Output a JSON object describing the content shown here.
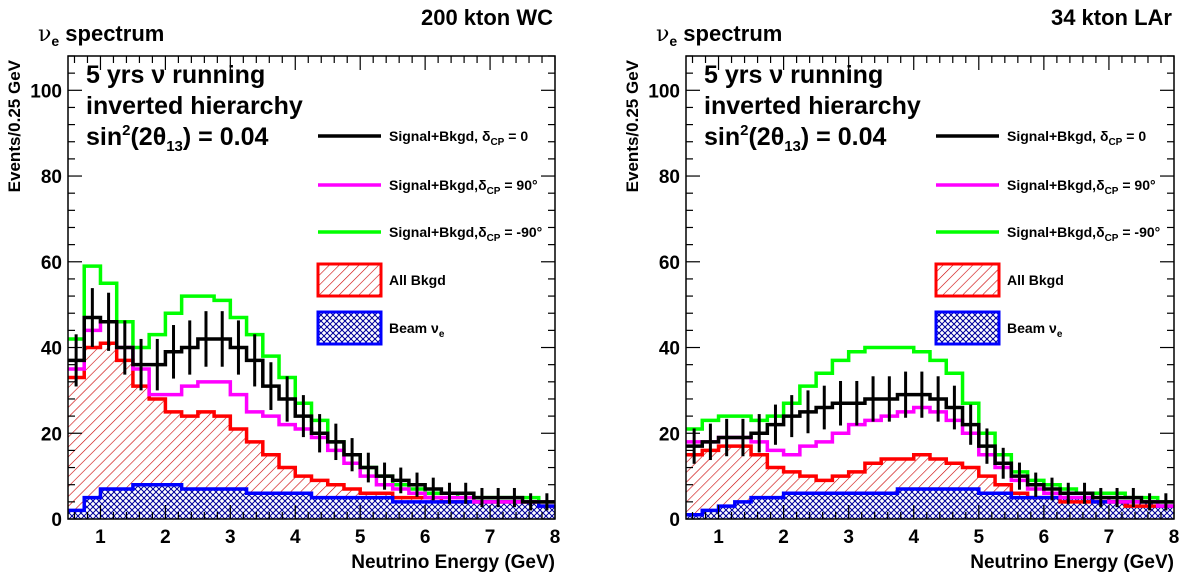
{
  "colors": {
    "sig_cp0": "#000000",
    "sig_cp90": "#ff00ff",
    "sig_cpm90": "#00ff00",
    "all_bkgd": "#ff0000",
    "all_bkgd_hatch": "#cc0000",
    "beam_nue": "#0000ff",
    "beam_nue_hatch": "#000099"
  },
  "chart_data": [
    {
      "type": "histogram",
      "top_right_label": "200 kton WC",
      "top_left_label_main": "ν",
      "top_left_label_sub": "e",
      "top_left_label_rest": " spectrum",
      "annotation_lines": [
        "5 yrs ν running",
        "inverted hierarchy"
      ],
      "theta_line": {
        "pre": "sin",
        "sup": "2",
        "mid1": "(2θ",
        "sub": "13",
        "post": ") = 0.04"
      },
      "xlabel": "Neutrino Energy (GeV)",
      "ylabel": "Events/0.25 GeV",
      "xlim": [
        0.5,
        8.0
      ],
      "ylim": [
        0,
        108
      ],
      "xticks": [
        "1",
        "2",
        "3",
        "4",
        "5",
        "6",
        "7",
        "8"
      ],
      "yticks": [
        "0",
        "20",
        "40",
        "60",
        "80",
        "100"
      ],
      "legend_placement": "right",
      "legend": [
        {
          "text": "Signal+Bkgd, δ",
          "sub": "CP",
          "tail": " = 0"
        },
        {
          "text": "Signal+Bkgd,δ",
          "sub": "CP",
          "tail": " = 90°"
        },
        {
          "text": "Signal+Bkgd,δ",
          "sub": "CP",
          "tail": " = -90°"
        },
        {
          "text": "All Bkgd",
          "sub": "",
          "tail": ""
        },
        {
          "text": "Beam ν",
          "sub": "e",
          "tail": ""
        }
      ],
      "bin_width": 0.25,
      "x_start": 0.5,
      "series": {
        "sig_cp0": [
          37,
          47,
          46,
          40,
          36,
          36,
          39,
          40,
          42,
          42,
          40,
          37,
          31,
          28,
          24,
          20,
          18,
          15,
          12,
          10,
          9,
          8,
          7,
          6,
          6,
          5,
          5,
          5,
          4,
          4
        ],
        "sig_cp90": [
          35,
          44,
          46,
          40,
          35,
          29,
          29,
          31,
          32,
          32,
          29,
          25,
          24,
          22,
          21,
          19,
          16,
          13,
          10,
          8,
          7,
          6,
          5,
          5,
          5,
          4,
          4,
          4,
          4,
          4
        ],
        "sig_cpm90": [
          42,
          59,
          55,
          46,
          40,
          43,
          48,
          52,
          52,
          51,
          47,
          43,
          38,
          33,
          27,
          23,
          18,
          15,
          12,
          10,
          8,
          7,
          6,
          6,
          5,
          5,
          5,
          5,
          5,
          4
        ],
        "all_bkgd": [
          33,
          40,
          41,
          37,
          31,
          28,
          25,
          24,
          25,
          24,
          21,
          18,
          15,
          12,
          10,
          9,
          8,
          7,
          6,
          6,
          5,
          5,
          5,
          4,
          4,
          4,
          4,
          4,
          4,
          3
        ],
        "beam_nue": [
          2,
          5,
          7,
          7,
          8,
          8,
          8,
          7,
          7,
          7,
          7,
          6,
          6,
          6,
          6,
          5,
          5,
          5,
          5,
          5,
          4,
          4,
          4,
          4,
          4,
          4,
          4,
          4,
          4,
          3
        ]
      }
    },
    {
      "type": "histogram",
      "top_right_label": "34 kton LAr",
      "top_left_label_main": "ν",
      "top_left_label_sub": "e",
      "top_left_label_rest": " spectrum",
      "annotation_lines": [
        "5 yrs ν running",
        "inverted hierarchy"
      ],
      "theta_line": {
        "pre": "sin",
        "sup": "2",
        "mid1": "(2θ",
        "sub": "13",
        "post": ") = 0.04"
      },
      "xlabel": "Neutrino Energy (GeV)",
      "ylabel": "Events/0.25 GeV",
      "xlim": [
        0.5,
        8.0
      ],
      "ylim": [
        0,
        108
      ],
      "xticks": [
        "1",
        "2",
        "3",
        "4",
        "5",
        "6",
        "7",
        "8"
      ],
      "yticks": [
        "0",
        "20",
        "40",
        "60",
        "80",
        "100"
      ],
      "legend_placement": "right",
      "legend": [
        {
          "text": "Signal+Bkgd, δ",
          "sub": "CP",
          "tail": " = 0"
        },
        {
          "text": "Signal+Bkgd,δ",
          "sub": "CP",
          "tail": " = 90°"
        },
        {
          "text": "Signal+Bkgd,δ",
          "sub": "CP",
          "tail": " = -90°"
        },
        {
          "text": "All Bkgd",
          "sub": "",
          "tail": ""
        },
        {
          "text": "Beam ν",
          "sub": "e",
          "tail": ""
        }
      ],
      "bin_width": 0.25,
      "x_start": 0.5,
      "series": {
        "sig_cp0": [
          17,
          18,
          19,
          19,
          20,
          22,
          24,
          25,
          26,
          27,
          27,
          28,
          28,
          29,
          29,
          28,
          26,
          22,
          17,
          13,
          10,
          8,
          7,
          6,
          6,
          5,
          5,
          5,
          4,
          4
        ],
        "sig_cp90": [
          18,
          18,
          19,
          19,
          18,
          16,
          15,
          17,
          18,
          20,
          22,
          23,
          24,
          25,
          26,
          25,
          23,
          20,
          15,
          12,
          9,
          7,
          6,
          5,
          5,
          5,
          4,
          4,
          4,
          3
        ],
        "sig_cpm90": [
          21,
          23,
          24,
          24,
          23,
          24,
          27,
          31,
          34,
          37,
          39,
          40,
          40,
          40,
          39,
          37,
          34,
          27,
          20,
          15,
          11,
          9,
          8,
          7,
          6,
          6,
          6,
          5,
          5,
          4
        ],
        "all_bkgd": [
          15,
          16,
          17,
          17,
          15,
          12,
          11,
          10,
          9,
          10,
          11,
          13,
          14,
          14,
          15,
          14,
          13,
          12,
          10,
          8,
          6,
          5,
          5,
          4,
          4,
          4,
          4,
          3,
          3,
          3
        ],
        "beam_nue": [
          1,
          2,
          3,
          4,
          5,
          5,
          6,
          6,
          6,
          6,
          6,
          6,
          6,
          7,
          7,
          7,
          7,
          7,
          6,
          6,
          5,
          5,
          5,
          5,
          5,
          4,
          4,
          4,
          4,
          3
        ]
      }
    }
  ]
}
